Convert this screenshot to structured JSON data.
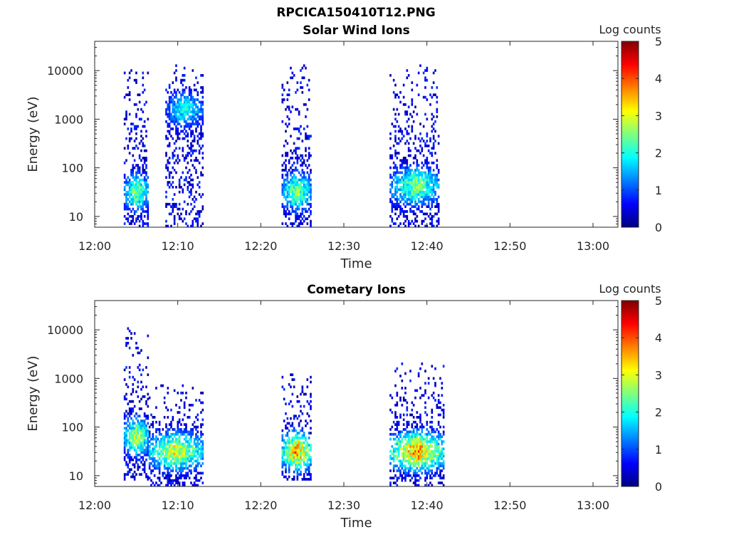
{
  "figure": {
    "title": "RPCICA150410T12.PNG"
  },
  "colorscale": {
    "stops": [
      "#00007F",
      "#0000FF",
      "#007FFF",
      "#00FFFF",
      "#7FFF7F",
      "#FFFF00",
      "#FF7F00",
      "#FF0000",
      "#7F0000"
    ]
  },
  "chart_data": [
    {
      "type": "heatmap",
      "title": "Solar Wind Ions",
      "xlabel": "Time",
      "ylabel": "Energy (eV)",
      "x_range": [
        "12:00",
        "13:03"
      ],
      "x_ticks": [
        "12:00",
        "12:10",
        "12:20",
        "12:30",
        "12:40",
        "12:50",
        "13:00"
      ],
      "y_scale": "log",
      "y_range": [
        6,
        40000
      ],
      "y_ticks": [
        "10",
        "100",
        "1000",
        "10000"
      ],
      "y_tick_values": [
        10,
        100,
        1000,
        10000
      ],
      "colorbar": {
        "label": "Log counts",
        "range": [
          0,
          5
        ],
        "ticks": [
          "0",
          "1",
          "2",
          "3",
          "4",
          "5"
        ]
      },
      "grid": false,
      "clusters": [
        {
          "t_start": "12:03.5",
          "t_end": "12:06.5",
          "e_min": 6,
          "e_max": 15000,
          "peak_energy": 30,
          "peak_log_counts": 2.7
        },
        {
          "t_start": "12:08.5",
          "t_end": "12:13.0",
          "e_min": 6,
          "e_max": 12000,
          "peak_energy": 1500,
          "peak_log_counts": 2.0
        },
        {
          "t_start": "12:22.5",
          "t_end": "12:26.0",
          "e_min": 6,
          "e_max": 12000,
          "peak_energy": 30,
          "peak_log_counts": 2.8
        },
        {
          "t_start": "12:35.5",
          "t_end": "12:41.5",
          "e_min": 6,
          "e_max": 14000,
          "peak_energy": 40,
          "peak_log_counts": 2.7
        }
      ]
    },
    {
      "type": "heatmap",
      "title": "Cometary Ions",
      "xlabel": "Time",
      "ylabel": "Energy (eV)",
      "x_range": [
        "12:00",
        "13:03"
      ],
      "x_ticks": [
        "12:00",
        "12:10",
        "12:20",
        "12:30",
        "12:40",
        "12:50",
        "13:00"
      ],
      "y_scale": "log",
      "y_range": [
        6,
        40000
      ],
      "y_ticks": [
        "10",
        "100",
        "1000",
        "10000"
      ],
      "y_tick_values": [
        10,
        100,
        1000,
        10000
      ],
      "colorbar": {
        "label": "Log counts",
        "range": [
          0,
          5
        ],
        "ticks": [
          "0",
          "1",
          "2",
          "3",
          "4",
          "5"
        ]
      },
      "grid": false,
      "clusters": [
        {
          "t_start": "12:03.5",
          "t_end": "12:06.5",
          "e_min": 8,
          "e_max": 11000,
          "peak_energy": 60,
          "peak_log_counts": 3.0
        },
        {
          "t_start": "12:06.5",
          "t_end": "12:13.0",
          "e_min": 6,
          "e_max": 700,
          "peak_energy": 30,
          "peak_log_counts": 3.2
        },
        {
          "t_start": "12:22.5",
          "t_end": "12:26.0",
          "e_min": 8,
          "e_max": 1300,
          "peak_energy": 30,
          "peak_log_counts": 3.8
        },
        {
          "t_start": "12:35.5",
          "t_end": "12:42.0",
          "e_min": 6,
          "e_max": 2000,
          "peak_energy": 30,
          "peak_log_counts": 3.8
        }
      ]
    }
  ]
}
